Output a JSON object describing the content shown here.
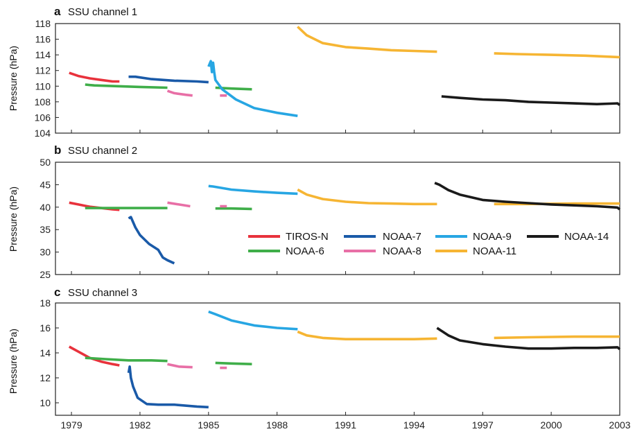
{
  "chart_data": [
    {
      "type": "line",
      "panel_letter": "a",
      "title": "SSU channel 1",
      "xlabel": "",
      "ylabel": "Pressure (hPa)",
      "xlim": [
        1978.3,
        2003.0
      ],
      "ylim": [
        104,
        118
      ],
      "yticks": [
        104,
        106,
        108,
        110,
        112,
        114,
        116,
        118
      ],
      "grid": false,
      "series": [
        {
          "name": "TIROS-N",
          "x": [
            1978.9,
            1979.3,
            1979.8,
            1980.3,
            1980.8,
            1981.1
          ],
          "y": [
            111.7,
            111.3,
            111.0,
            110.8,
            110.6,
            110.6
          ]
        },
        {
          "name": "NOAA-6",
          "x": [
            1979.6,
            1980.0,
            1981.0,
            1982.0,
            1983.2
          ],
          "y": [
            110.2,
            110.1,
            110.0,
            109.9,
            109.8
          ]
        },
        {
          "name": "NOAA-6",
          "x": [
            1985.3,
            1986.0,
            1986.9
          ],
          "y": [
            109.8,
            109.7,
            109.6
          ]
        },
        {
          "name": "NOAA-7",
          "x": [
            1981.5,
            1981.8,
            1982.5,
            1983.5,
            1984.5,
            1985.0
          ],
          "y": [
            111.2,
            111.2,
            110.9,
            110.7,
            110.6,
            110.5
          ]
        },
        {
          "name": "NOAA-8",
          "x": [
            1983.2,
            1983.5,
            1984.0,
            1984.3
          ],
          "y": [
            109.4,
            109.1,
            108.9,
            108.8
          ]
        },
        {
          "name": "NOAA-8",
          "x": [
            1985.5,
            1985.8
          ],
          "y": [
            108.8,
            108.8
          ]
        },
        {
          "name": "NOAA-9",
          "x": [
            1985.0,
            1985.1,
            1985.15,
            1985.2,
            1985.25,
            1985.3,
            1985.6,
            1986.2,
            1987.0,
            1988.0,
            1988.9
          ],
          "y": [
            112.5,
            113.2,
            111.8,
            113.0,
            111.8,
            110.8,
            109.6,
            108.3,
            107.2,
            106.6,
            106.2
          ]
        },
        {
          "name": "NOAA-11",
          "x": [
            1988.9,
            1989.3,
            1990.0,
            1991.0,
            1992.0,
            1993.0,
            1994.0,
            1995.0
          ],
          "y": [
            117.6,
            116.5,
            115.5,
            115.0,
            114.8,
            114.6,
            114.5,
            114.4
          ]
        },
        {
          "name": "NOAA-11",
          "x": [
            1997.5,
            1998.5,
            2000.0,
            2001.5,
            2003.0
          ],
          "y": [
            114.2,
            114.1,
            114.0,
            113.9,
            113.7
          ]
        },
        {
          "name": "NOAA-14",
          "x": [
            1995.2,
            1996.0,
            1997.0,
            1998.0,
            1999.0,
            2000.0,
            2001.0,
            2002.0,
            2002.9,
            2003.0
          ],
          "y": [
            108.7,
            108.5,
            108.3,
            108.2,
            108.0,
            107.9,
            107.8,
            107.7,
            107.8,
            107.6
          ]
        }
      ]
    },
    {
      "type": "line",
      "panel_letter": "b",
      "title": "SSU channel 2",
      "xlabel": "",
      "ylabel": "Pressure (hPa)",
      "xlim": [
        1978.3,
        2003.0
      ],
      "ylim": [
        25,
        50
      ],
      "yticks": [
        25,
        30,
        35,
        40,
        45,
        50
      ],
      "grid": false,
      "series": [
        {
          "name": "TIROS-N",
          "x": [
            1978.9,
            1979.3,
            1979.8,
            1980.3,
            1980.8,
            1981.1
          ],
          "y": [
            41.0,
            40.6,
            40.1,
            39.8,
            39.5,
            39.4
          ]
        },
        {
          "name": "NOAA-6",
          "x": [
            1979.6,
            1980.5,
            1981.5,
            1982.5,
            1983.2
          ],
          "y": [
            39.8,
            39.8,
            39.8,
            39.8,
            39.8
          ]
        },
        {
          "name": "NOAA-6",
          "x": [
            1985.3,
            1986.0,
            1986.9
          ],
          "y": [
            39.7,
            39.7,
            39.6
          ]
        },
        {
          "name": "NOAA-7",
          "x": [
            1981.5,
            1981.6,
            1981.8,
            1982.0,
            1982.4,
            1982.8,
            1983.0,
            1983.2,
            1983.5
          ],
          "y": [
            37.5,
            37.8,
            35.5,
            33.8,
            31.8,
            30.5,
            28.8,
            28.2,
            27.5
          ]
        },
        {
          "name": "NOAA-8",
          "x": [
            1983.2,
            1983.7,
            1984.2
          ],
          "y": [
            41.0,
            40.6,
            40.2
          ]
        },
        {
          "name": "NOAA-8",
          "x": [
            1985.5,
            1985.8
          ],
          "y": [
            40.2,
            40.2
          ]
        },
        {
          "name": "NOAA-9",
          "x": [
            1985.0,
            1985.2,
            1986.0,
            1987.0,
            1988.0,
            1988.9
          ],
          "y": [
            44.7,
            44.6,
            43.9,
            43.5,
            43.2,
            43.0
          ]
        },
        {
          "name": "NOAA-11",
          "x": [
            1988.9,
            1989.3,
            1990.0,
            1991.0,
            1992.0,
            1993.0,
            1994.0,
            1995.0
          ],
          "y": [
            43.9,
            42.8,
            41.8,
            41.2,
            40.9,
            40.8,
            40.7,
            40.7
          ]
        },
        {
          "name": "NOAA-11",
          "x": [
            1997.5,
            1999.0,
            2001.0,
            2003.0
          ],
          "y": [
            40.7,
            40.7,
            40.8,
            40.8
          ]
        },
        {
          "name": "NOAA-14",
          "x": [
            1994.9,
            1995.1,
            1995.5,
            1996.0,
            1997.0,
            1998.0,
            1999.0,
            2000.0,
            2001.0,
            2002.0,
            2002.9,
            2003.0
          ],
          "y": [
            45.4,
            45.0,
            43.8,
            42.8,
            41.6,
            41.2,
            40.9,
            40.6,
            40.4,
            40.2,
            39.9,
            39.5
          ]
        }
      ]
    },
    {
      "type": "line",
      "panel_letter": "c",
      "title": "SSU channel 3",
      "xlabel": "",
      "ylabel": "Pressure (hPa)",
      "xlim": [
        1978.3,
        2003.0
      ],
      "ylim": [
        9,
        18
      ],
      "yticks": [
        10,
        12,
        14,
        16,
        18
      ],
      "grid": false,
      "xticks": [
        "1979",
        "1982",
        "1985",
        "1988",
        "1991",
        "1994",
        "1997",
        "2000",
        "2003"
      ],
      "series": [
        {
          "name": "TIROS-N",
          "x": [
            1978.9,
            1979.3,
            1979.8,
            1980.3,
            1980.8,
            1981.1
          ],
          "y": [
            14.5,
            14.1,
            13.6,
            13.3,
            13.1,
            13.0
          ]
        },
        {
          "name": "NOAA-6",
          "x": [
            1979.6,
            1980.5,
            1981.5,
            1982.5,
            1983.2
          ],
          "y": [
            13.6,
            13.5,
            13.4,
            13.4,
            13.35
          ]
        },
        {
          "name": "NOAA-6",
          "x": [
            1985.3,
            1986.0,
            1986.9
          ],
          "y": [
            13.2,
            13.15,
            13.1
          ]
        },
        {
          "name": "NOAA-7",
          "x": [
            1981.5,
            1981.55,
            1981.6,
            1981.7,
            1981.9,
            1982.3,
            1982.8,
            1983.5,
            1984.5,
            1985.0
          ],
          "y": [
            12.4,
            12.9,
            12.0,
            11.3,
            10.4,
            9.9,
            9.85,
            9.85,
            9.7,
            9.65
          ]
        },
        {
          "name": "NOAA-8",
          "x": [
            1983.2,
            1983.7,
            1984.3
          ],
          "y": [
            13.1,
            12.9,
            12.85
          ]
        },
        {
          "name": "NOAA-8",
          "x": [
            1985.5,
            1985.8
          ],
          "y": [
            12.8,
            12.8
          ]
        },
        {
          "name": "NOAA-9",
          "x": [
            1985.0,
            1985.3,
            1986.0,
            1987.0,
            1988.0,
            1988.9
          ],
          "y": [
            17.3,
            17.1,
            16.6,
            16.2,
            16.0,
            15.9
          ]
        },
        {
          "name": "NOAA-11",
          "x": [
            1988.9,
            1989.3,
            1990.0,
            1991.0,
            1992.0,
            1993.0,
            1994.0,
            1995.0
          ],
          "y": [
            15.7,
            15.4,
            15.2,
            15.1,
            15.1,
            15.1,
            15.1,
            15.15
          ]
        },
        {
          "name": "NOAA-11",
          "x": [
            1997.5,
            1999.0,
            2001.0,
            2003.0
          ],
          "y": [
            15.2,
            15.25,
            15.3,
            15.3
          ]
        },
        {
          "name": "NOAA-14",
          "x": [
            1995.0,
            1995.5,
            1996.0,
            1997.0,
            1998.0,
            1999.0,
            2000.0,
            2001.0,
            2002.0,
            2002.9,
            2003.0
          ],
          "y": [
            16.0,
            15.4,
            15.0,
            14.7,
            14.5,
            14.35,
            14.35,
            14.4,
            14.4,
            14.45,
            14.3
          ]
        }
      ]
    }
  ],
  "legend": {
    "placement": "panel b, lower right",
    "entries": [
      {
        "name": "TIROS-N",
        "color": "#e8323c"
      },
      {
        "name": "NOAA-7",
        "color": "#1a5aa8"
      },
      {
        "name": "NOAA-9",
        "color": "#27a6e3"
      },
      {
        "name": "NOAA-14",
        "color": "#1a1a1a"
      },
      {
        "name": "NOAA-6",
        "color": "#3fae49"
      },
      {
        "name": "NOAA-8",
        "color": "#e86fa6"
      },
      {
        "name": "NOAA-11",
        "color": "#f6b533"
      }
    ]
  },
  "colors": {
    "TIROS-N": "#e8323c",
    "NOAA-6": "#3fae49",
    "NOAA-7": "#1a5aa8",
    "NOAA-8": "#e86fa6",
    "NOAA-9": "#27a6e3",
    "NOAA-11": "#f6b533",
    "NOAA-14": "#1a1a1a",
    "axis": "#222222"
  }
}
